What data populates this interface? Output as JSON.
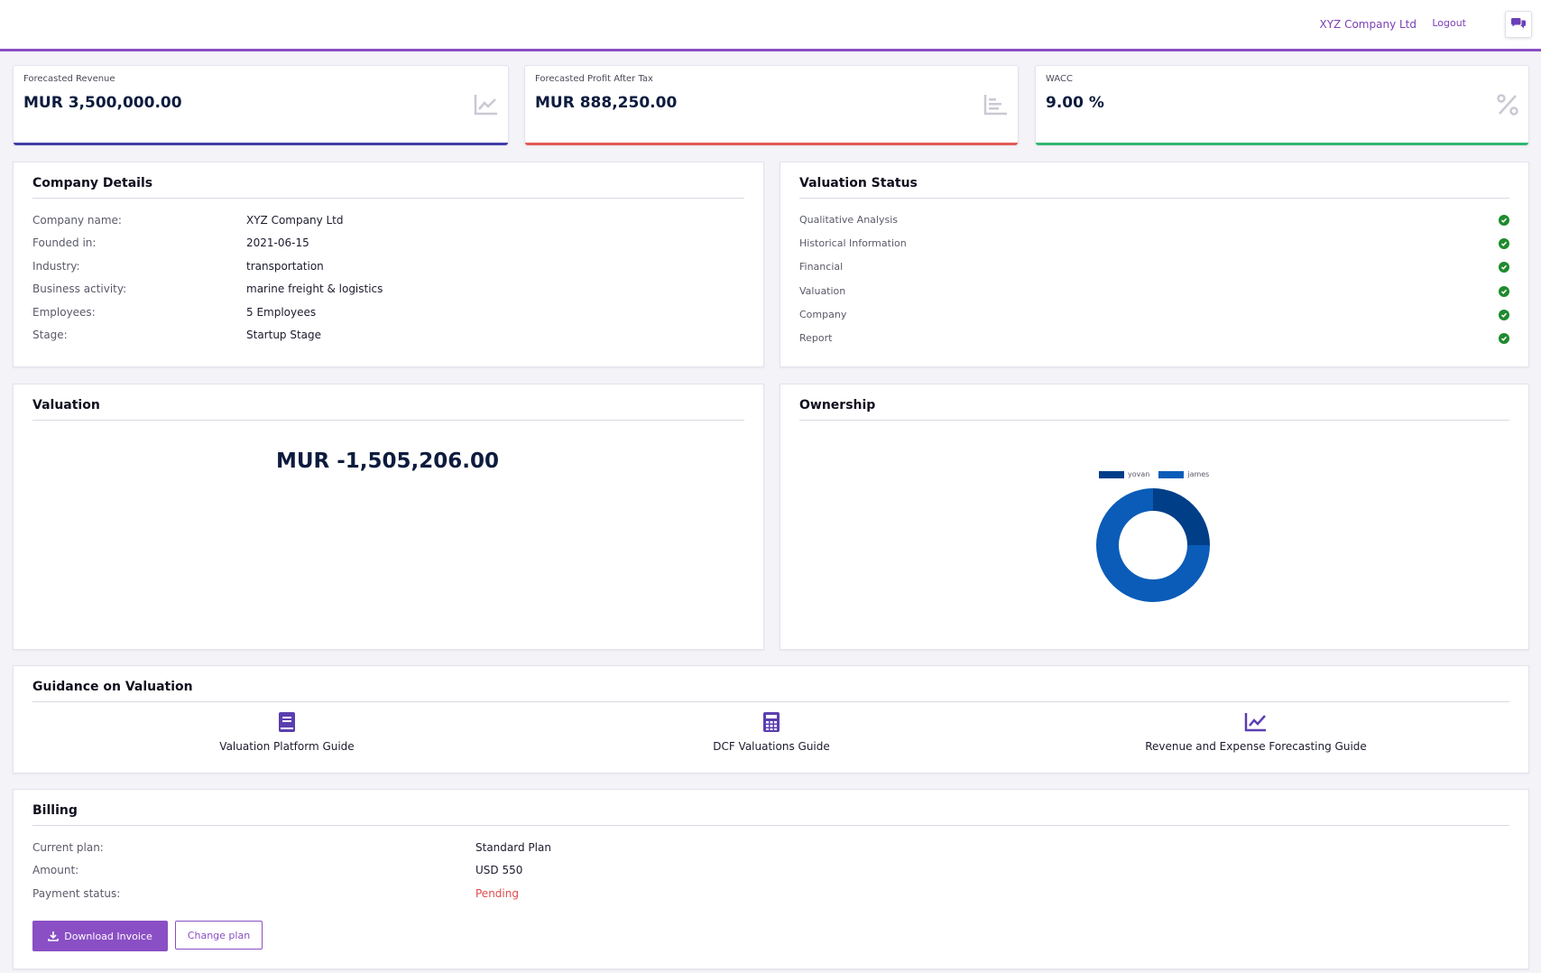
{
  "header": {
    "company_name": "XYZ Company Ltd",
    "logout_label": "Logout",
    "chat_icon": "chat-icon"
  },
  "stats": [
    {
      "label": "Forecasted Revenue",
      "value": "MUR 3,500,000.00",
      "icon": "line-chart-icon",
      "color": "#3f3fa8"
    },
    {
      "label": "Forecasted Profit After Tax",
      "value": "MUR 888,250.00",
      "icon": "bar-chart-icon",
      "color": "#e25a57"
    },
    {
      "label": "WACC",
      "value": "9.00 %",
      "icon": "percent-icon",
      "color": "#2eb872"
    }
  ],
  "company_details": {
    "title": "Company Details",
    "rows": [
      {
        "label": "Company name:",
        "value": "XYZ Company Ltd"
      },
      {
        "label": "Founded in:",
        "value": "2021-06-15"
      },
      {
        "label": "Industry:",
        "value": "transportation"
      },
      {
        "label": "Business activity:",
        "value": "marine freight & logistics"
      },
      {
        "label": "Employees:",
        "value": "5 Employees"
      },
      {
        "label": "Stage:",
        "value": "Startup Stage"
      }
    ]
  },
  "valuation_status": {
    "title": "Valuation Status",
    "items": [
      {
        "label": "Qualitative Analysis",
        "done": true
      },
      {
        "label": "Historical Information",
        "done": true
      },
      {
        "label": "Financial",
        "done": true
      },
      {
        "label": "Valuation",
        "done": true
      },
      {
        "label": "Company",
        "done": true
      },
      {
        "label": "Report",
        "done": true
      }
    ]
  },
  "valuation": {
    "title": "Valuation",
    "amount": "MUR -1,505,206.00"
  },
  "ownership": {
    "title": "Ownership"
  },
  "chart_data": {
    "type": "pie",
    "variant": "doughnut",
    "categories": [
      "yovan",
      "james"
    ],
    "values": [
      25,
      75
    ],
    "colors": [
      "#003f88",
      "#0a5cb8"
    ],
    "legend": "top"
  },
  "guidance": {
    "title": "Guidance on Valuation",
    "items": [
      {
        "label": "Valuation Platform Guide",
        "icon": "book-icon"
      },
      {
        "label": "DCF Valuations Guide",
        "icon": "calculator-icon"
      },
      {
        "label": "Revenue and Expense Forecasting Guide",
        "icon": "line-chart-icon"
      }
    ],
    "accent": "#5b3fb0"
  },
  "billing": {
    "title": "Billing",
    "rows": [
      {
        "label": "Current plan:",
        "value": "Standard Plan"
      },
      {
        "label": "Amount:",
        "value": "USD 550"
      },
      {
        "label": "Payment status:",
        "value": "Pending"
      }
    ],
    "download_label": "Download Invoice",
    "change_label": "Change plan"
  }
}
